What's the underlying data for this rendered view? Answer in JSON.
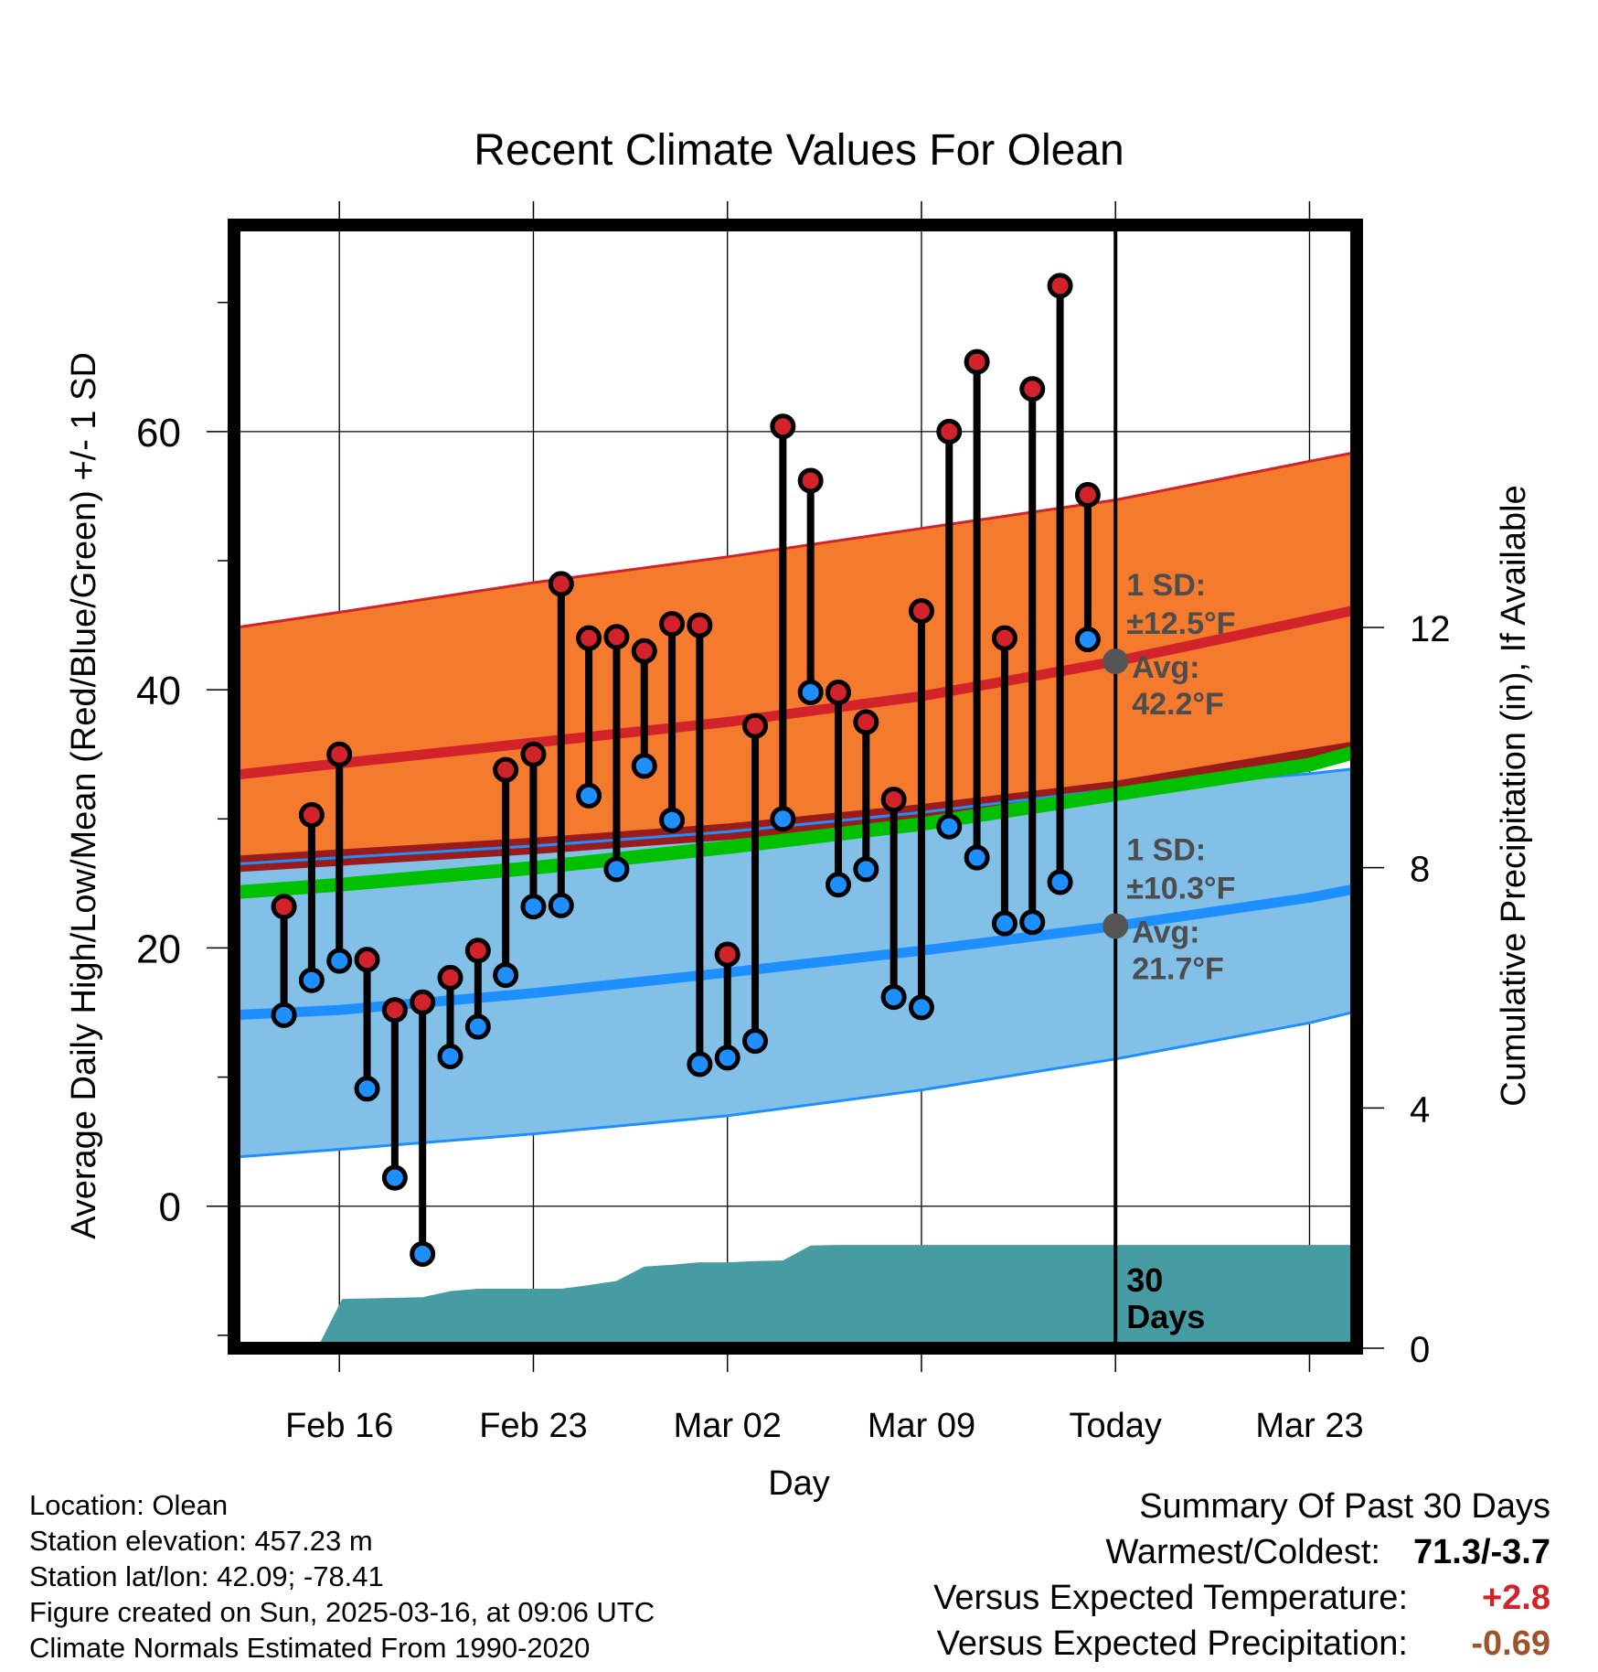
{
  "chart_data": {
    "type": "line",
    "title": "Recent Climate Values For Olean",
    "xlabel": "Day",
    "ylabel": "Average Daily High/Low/Mean (Red/Blue/Green) +/- 1 SD",
    "y2label": "Cumulative Precipitation (in), If Available",
    "x_ticks": [
      "Feb 16",
      "Feb 23",
      "Mar 02",
      "Mar 09",
      "Today",
      "Mar 23"
    ],
    "x_tick_days": [
      16,
      23,
      30,
      37,
      44,
      51
    ],
    "xlim": [
      12.2,
      52.7
    ],
    "ylim": [
      -11,
      76
    ],
    "y_ticks": [
      0,
      20,
      40,
      60
    ],
    "y_minor_ticks": [
      -10,
      10,
      30,
      50,
      70
    ],
    "y2lim": [
      0,
      18.7
    ],
    "y2_ticks": [
      0,
      4,
      8,
      12
    ],
    "grid": true,
    "normals": {
      "x_days": [
        12.2,
        16,
        23,
        30,
        37,
        44,
        51,
        52.7
      ],
      "avg_high": [
        33.4,
        34.3,
        35.9,
        37.5,
        39.5,
        42.2,
        45.4,
        46.2
      ],
      "avg_high_plus_sd": [
        44.8,
        46.0,
        48.3,
        50.3,
        52.5,
        54.7,
        57.7,
        58.4
      ],
      "avg_high_minus_sd": [
        26.5,
        27.0,
        27.9,
        29.0,
        30.5,
        32.3,
        34.8,
        35.4
      ],
      "avg_low": [
        14.8,
        15.2,
        16.5,
        18.1,
        19.8,
        21.7,
        23.9,
        24.6
      ],
      "avg_low_plus_sd": [
        26.5,
        27.0,
        27.9,
        29.0,
        30.5,
        32.3,
        33.5,
        33.9
      ],
      "avg_low_minus_sd": [
        3.8,
        4.4,
        5.6,
        7.0,
        9.0,
        11.4,
        14.2,
        15.1
      ],
      "avg_mean": [
        24.3,
        24.9,
        26.2,
        27.8,
        29.6,
        31.9,
        34.2,
        35.2
      ]
    },
    "today_stats": {
      "high_sd_label": "1 SD:",
      "high_sd_value": "±12.5°F",
      "high_avg_label": "Avg:",
      "high_avg_value": "42.2°F",
      "high_avg": 42.2,
      "low_sd_label": "1 SD:",
      "low_sd_value": "±10.3°F",
      "low_avg_label": "Avg:",
      "low_avg_value": "21.7°F",
      "low_avg": 21.7
    },
    "daily": {
      "days": [
        14,
        15,
        16,
        17,
        18,
        19,
        20,
        21,
        22,
        23,
        24,
        25,
        26,
        27,
        28,
        29,
        30,
        31,
        32,
        33,
        34,
        35,
        36,
        37,
        38,
        39,
        40,
        41,
        42,
        43
      ],
      "high": [
        23.2,
        30.3,
        35.0,
        19.1,
        15.2,
        15.8,
        17.7,
        19.8,
        33.8,
        35.0,
        48.2,
        44.0,
        44.1,
        43.0,
        45.1,
        45.0,
        19.5,
        37.2,
        60.4,
        56.2,
        39.8,
        37.5,
        31.5,
        46.1,
        60.0,
        65.4,
        44.0,
        63.3,
        71.3,
        55.1
      ],
      "low": [
        14.8,
        17.5,
        19.0,
        9.1,
        2.2,
        -3.7,
        11.6,
        13.9,
        17.9,
        23.2,
        23.3,
        31.8,
        26.1,
        34.1,
        29.9,
        11.0,
        11.5,
        12.8,
        30.0,
        39.8,
        24.9,
        26.1,
        16.2,
        15.4,
        29.4,
        27.0,
        21.9,
        22.0,
        25.1,
        43.9
      ]
    },
    "precip": {
      "days": [
        15.2,
        16.1,
        19.0,
        20.0,
        21.0,
        24.0,
        25.0,
        26.0,
        27.0,
        28.0,
        29.0,
        30.0,
        31.0,
        32.0,
        33.0,
        34.0,
        40.0,
        41.0,
        42.0,
        43.0,
        52.7
      ],
      "cumulative": [
        0.0,
        0.82,
        0.85,
        0.95,
        0.99,
        0.99,
        1.05,
        1.12,
        1.36,
        1.39,
        1.43,
        1.43,
        1.45,
        1.46,
        1.71,
        1.72,
        1.72,
        1.72,
        1.72,
        1.72,
        1.72
      ]
    },
    "days_label": "30 Days",
    "colors": {
      "high_band": "#f47a2e",
      "high_line": "#d2232a",
      "low_band": "#82c0e8",
      "low_line": "#1e8fff",
      "mean_line": "#00c000",
      "overlap": "#9b1b1b",
      "precip": "#479ca3",
      "high_dot": "#d2232a",
      "low_dot": "#1e8fff",
      "stat_text": "#4d4d4d"
    }
  },
  "info": {
    "location": "Location: Olean",
    "elevation": "Station elevation: 457.23 m",
    "latlon": "Station lat/lon: 42.09; -78.41",
    "created": "Figure created on Sun, 2025-03-16, at 09:06 UTC",
    "normals": "Climate Normals Estimated From 1990-2020"
  },
  "summary": {
    "title": "Summary Of Past 30 Days",
    "warmest_label": "Warmest/Coldest:",
    "warmest_value": "71.3/-3.7",
    "temp_label": "Versus Expected Temperature:",
    "temp_value": "+2.8",
    "temp_color": "#d2232a",
    "precip_label": "Versus Expected Precipitation:",
    "precip_value": "-0.69",
    "precip_color": "#a0522d"
  }
}
